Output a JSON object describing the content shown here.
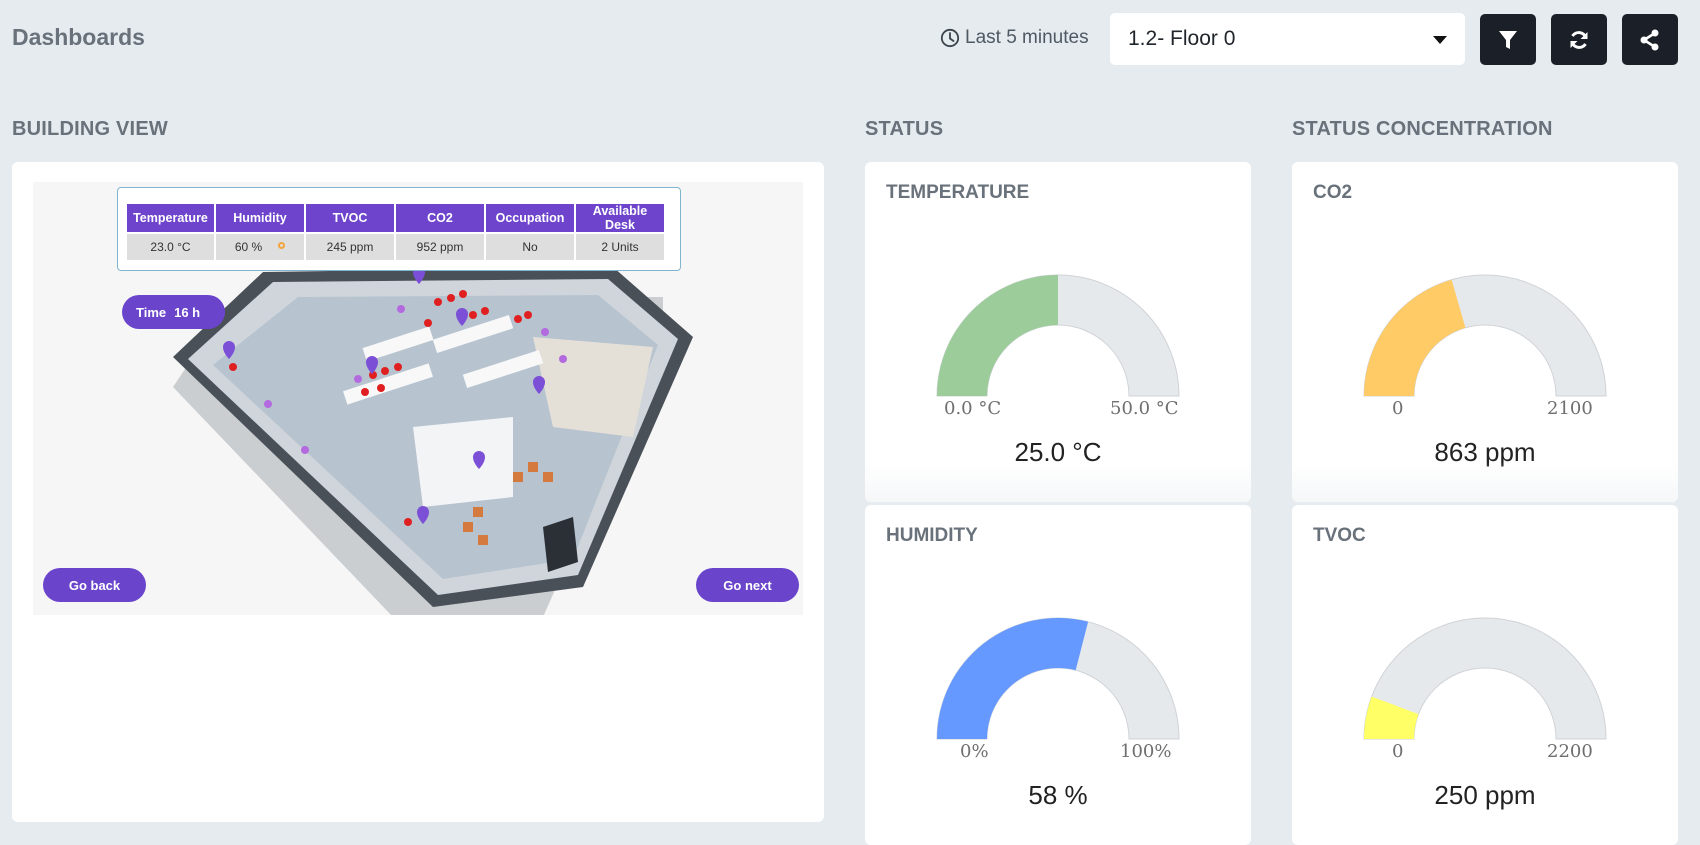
{
  "header": {
    "title": "Dashboards",
    "time_range": "Last 5 minutes",
    "selected_floor": "1.2- Floor 0",
    "buttons": [
      {
        "name": "filter-button",
        "icon": "filter-icon"
      },
      {
        "name": "refresh-button",
        "icon": "refresh-icon"
      },
      {
        "name": "share-button",
        "icon": "share-icon"
      }
    ]
  },
  "sections": {
    "building_view": "BUILDING VIEW",
    "status": "STATUS",
    "status_concentration": "STATUS CONCENTRATION"
  },
  "building_view": {
    "table": {
      "headers": [
        "Temperature",
        "Humidity",
        "TVOC",
        "CO2",
        "Occupation",
        "Available Desk"
      ],
      "values": [
        "23.0 °C",
        "60 %",
        "245 ppm",
        "952 ppm",
        "No",
        "2 Units"
      ]
    },
    "time_label": "Time",
    "time_value": "16 h",
    "go_back": "Go back",
    "go_next": "Go next"
  },
  "gauges": {
    "temperature": {
      "title": "TEMPERATURE",
      "min": "0.0 °C",
      "max": "50.0 °C",
      "value": "25.0 °C",
      "fraction": 0.5,
      "color": "#9ccc9a"
    },
    "co2": {
      "title": "CO2",
      "min": "0",
      "max": "2100",
      "value": "863 ppm",
      "fraction": 0.411,
      "color": "#ffcb66"
    },
    "humidity": {
      "title": "HUMIDITY",
      "min": "0%",
      "max": "100%",
      "value": "58 %",
      "fraction": 0.58,
      "color": "#6699ff"
    },
    "tvoc": {
      "title": "TVOC",
      "min": "0",
      "max": "2200",
      "value": "250 ppm",
      "fraction": 0.114,
      "color": "#ffff66"
    }
  },
  "colors": {
    "accent_purple": "#6a45cc",
    "dark_button": "#1b1f27",
    "background": "#e6ebef",
    "gauge_track": "#e6e9ec"
  }
}
